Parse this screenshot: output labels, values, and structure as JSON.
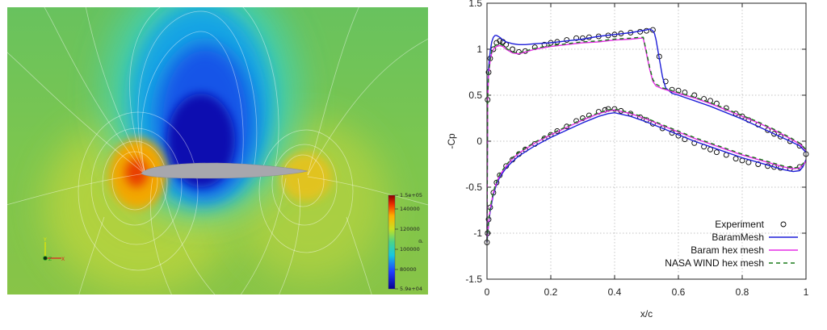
{
  "field_plot": {
    "colorbar": {
      "variable": "p",
      "max_label": "1.5e+05",
      "min_label": "5.9e+04",
      "ticks": [
        "140000",
        "120000",
        "100000",
        "80000"
      ]
    },
    "triad": {
      "y": "Y",
      "z": "Z",
      "x": "X"
    },
    "colors": {
      "background": "#6fc25a",
      "low": "#0a00a0",
      "high": "#a00000",
      "airfoil": "#a7a7ad"
    }
  },
  "chart_data": {
    "type": "line",
    "xlabel": "x/c",
    "ylabel": "-Cp",
    "xlim": [
      0,
      1
    ],
    "ylim": [
      -1.5,
      1.5
    ],
    "xticks": [
      "0",
      "0.2",
      "0.4",
      "0.6",
      "0.8",
      "1"
    ],
    "yticks": [
      "1.5",
      "1",
      "0.5",
      "0",
      "-0.5",
      "-1",
      "-1.5"
    ],
    "legend_position": "bottom-right",
    "series": [
      {
        "name": "Experiment",
        "style": "markers",
        "color": "#000000",
        "upper": {
          "x": [
            0.0,
            0.002,
            0.005,
            0.01,
            0.02,
            0.03,
            0.04,
            0.05,
            0.06,
            0.08,
            0.1,
            0.12,
            0.15,
            0.18,
            0.2,
            0.22,
            0.25,
            0.28,
            0.3,
            0.32,
            0.35,
            0.38,
            0.4,
            0.42,
            0.45,
            0.48,
            0.5,
            0.52,
            0.54,
            0.56,
            0.58,
            0.6,
            0.62,
            0.65,
            0.68,
            0.7,
            0.72,
            0.75,
            0.78,
            0.8,
            0.82,
            0.85,
            0.88,
            0.9,
            0.92,
            0.95,
            0.98,
            1.0
          ],
          "y": [
            -1.1,
            0.45,
            0.75,
            0.9,
            1.0,
            1.07,
            1.09,
            1.08,
            1.05,
            1.0,
            0.97,
            0.98,
            1.02,
            1.05,
            1.07,
            1.08,
            1.1,
            1.12,
            1.12,
            1.13,
            1.14,
            1.15,
            1.16,
            1.17,
            1.18,
            1.19,
            1.2,
            1.21,
            0.92,
            0.65,
            0.56,
            0.55,
            0.53,
            0.5,
            0.46,
            0.44,
            0.41,
            0.36,
            0.3,
            0.27,
            0.23,
            0.18,
            0.12,
            0.08,
            0.05,
            0.0,
            -0.05,
            -0.14
          ]
        },
        "lower": {
          "x": [
            0.002,
            0.005,
            0.01,
            0.02,
            0.03,
            0.04,
            0.06,
            0.08,
            0.1,
            0.12,
            0.15,
            0.18,
            0.2,
            0.22,
            0.25,
            0.28,
            0.3,
            0.32,
            0.35,
            0.37,
            0.38,
            0.4,
            0.42,
            0.45,
            0.48,
            0.5,
            0.52,
            0.55,
            0.58,
            0.6,
            0.62,
            0.65,
            0.68,
            0.7,
            0.72,
            0.75,
            0.78,
            0.8,
            0.82,
            0.85,
            0.88,
            0.9,
            0.92,
            0.95,
            0.98
          ],
          "y": [
            -1.0,
            -0.85,
            -0.72,
            -0.56,
            -0.45,
            -0.37,
            -0.27,
            -0.2,
            -0.14,
            -0.09,
            -0.03,
            0.03,
            0.07,
            0.11,
            0.16,
            0.22,
            0.25,
            0.28,
            0.32,
            0.34,
            0.35,
            0.35,
            0.33,
            0.3,
            0.26,
            0.23,
            0.19,
            0.14,
            0.09,
            0.06,
            0.02,
            -0.02,
            -0.06,
            -0.09,
            -0.12,
            -0.15,
            -0.19,
            -0.21,
            -0.23,
            -0.25,
            -0.27,
            -0.28,
            -0.29,
            -0.3,
            -0.28
          ]
        }
      },
      {
        "name": "BaramMesh",
        "style": "line",
        "color": "#1f1fd8",
        "upper": {
          "x": [
            0.0,
            0.002,
            0.005,
            0.01,
            0.015,
            0.02,
            0.025,
            0.03,
            0.04,
            0.05,
            0.06,
            0.08,
            0.1,
            0.12,
            0.15,
            0.2,
            0.25,
            0.3,
            0.35,
            0.4,
            0.45,
            0.5,
            0.51,
            0.52,
            0.525,
            0.53,
            0.54,
            0.55,
            0.56,
            0.58,
            0.6,
            0.65,
            0.7,
            0.75,
            0.8,
            0.85,
            0.9,
            0.95,
            0.98,
            1.0
          ],
          "y": [
            -1.1,
            0.5,
            0.8,
            0.98,
            1.08,
            1.13,
            1.15,
            1.15,
            1.13,
            1.1,
            1.08,
            1.06,
            1.05,
            1.05,
            1.06,
            1.07,
            1.09,
            1.11,
            1.14,
            1.16,
            1.18,
            1.21,
            1.22,
            1.2,
            1.17,
            1.1,
            0.9,
            0.7,
            0.58,
            0.52,
            0.5,
            0.44,
            0.38,
            0.31,
            0.24,
            0.16,
            0.08,
            0.0,
            -0.05,
            -0.12
          ]
        },
        "lower": {
          "x": [
            0.0,
            0.002,
            0.005,
            0.01,
            0.02,
            0.03,
            0.04,
            0.06,
            0.08,
            0.1,
            0.15,
            0.2,
            0.25,
            0.3,
            0.35,
            0.38,
            0.4,
            0.45,
            0.5,
            0.55,
            0.6,
            0.65,
            0.7,
            0.75,
            0.8,
            0.85,
            0.9,
            0.93,
            0.96,
            0.98,
            0.99,
            1.0
          ],
          "y": [
            -1.1,
            -1.02,
            -0.9,
            -0.76,
            -0.58,
            -0.47,
            -0.39,
            -0.29,
            -0.22,
            -0.16,
            -0.05,
            0.04,
            0.12,
            0.2,
            0.27,
            0.3,
            0.31,
            0.27,
            0.21,
            0.14,
            0.07,
            0.0,
            -0.06,
            -0.12,
            -0.18,
            -0.23,
            -0.28,
            -0.31,
            -0.33,
            -0.32,
            -0.28,
            -0.2
          ]
        }
      },
      {
        "name": "Baram hex mesh",
        "style": "line",
        "color": "#e62be6",
        "upper": {
          "x": [
            0.0,
            0.002,
            0.005,
            0.01,
            0.015,
            0.02,
            0.03,
            0.04,
            0.05,
            0.06,
            0.08,
            0.1,
            0.12,
            0.15,
            0.2,
            0.25,
            0.3,
            0.35,
            0.4,
            0.45,
            0.48,
            0.49,
            0.5,
            0.51,
            0.52,
            0.53,
            0.55,
            0.58,
            0.6,
            0.65,
            0.7,
            0.75,
            0.8,
            0.85,
            0.9,
            0.95,
            0.98,
            1.0
          ],
          "y": [
            -1.1,
            0.45,
            0.72,
            0.88,
            0.96,
            1.0,
            1.03,
            1.04,
            1.03,
            1.0,
            0.96,
            0.95,
            0.97,
            1.0,
            1.03,
            1.05,
            1.07,
            1.08,
            1.1,
            1.11,
            1.12,
            1.12,
            0.95,
            0.78,
            0.65,
            0.6,
            0.57,
            0.54,
            0.52,
            0.47,
            0.41,
            0.34,
            0.27,
            0.2,
            0.12,
            0.03,
            -0.03,
            -0.1
          ]
        },
        "lower": {
          "x": [
            0.0,
            0.002,
            0.005,
            0.01,
            0.02,
            0.03,
            0.04,
            0.06,
            0.08,
            0.1,
            0.15,
            0.2,
            0.25,
            0.3,
            0.35,
            0.38,
            0.4,
            0.45,
            0.5,
            0.55,
            0.6,
            0.65,
            0.7,
            0.75,
            0.8,
            0.85,
            0.9,
            0.93,
            0.96,
            0.98,
            1.0
          ],
          "y": [
            -1.08,
            -1.0,
            -0.88,
            -0.73,
            -0.56,
            -0.45,
            -0.37,
            -0.27,
            -0.19,
            -0.13,
            -0.02,
            0.07,
            0.15,
            0.23,
            0.3,
            0.33,
            0.34,
            0.3,
            0.24,
            0.17,
            0.1,
            0.03,
            -0.03,
            -0.09,
            -0.15,
            -0.2,
            -0.25,
            -0.28,
            -0.3,
            -0.29,
            -0.22
          ]
        }
      },
      {
        "name": "NASA WIND hex mesh",
        "style": "dashed",
        "color": "#1a7a1a",
        "upper": {
          "x": [
            0.0,
            0.002,
            0.005,
            0.01,
            0.015,
            0.02,
            0.03,
            0.04,
            0.05,
            0.06,
            0.08,
            0.1,
            0.12,
            0.15,
            0.2,
            0.25,
            0.3,
            0.35,
            0.4,
            0.45,
            0.48,
            0.49,
            0.5,
            0.51,
            0.52,
            0.53,
            0.55,
            0.58,
            0.6,
            0.65,
            0.7,
            0.75,
            0.8,
            0.85,
            0.9,
            0.95,
            0.98,
            1.0
          ],
          "y": [
            -1.1,
            0.46,
            0.74,
            0.9,
            0.98,
            1.02,
            1.05,
            1.06,
            1.04,
            1.01,
            0.97,
            0.96,
            0.98,
            1.01,
            1.04,
            1.06,
            1.08,
            1.09,
            1.11,
            1.12,
            1.13,
            1.13,
            0.97,
            0.8,
            0.67,
            0.62,
            0.58,
            0.55,
            0.53,
            0.48,
            0.42,
            0.35,
            0.28,
            0.21,
            0.13,
            0.04,
            -0.02,
            -0.09
          ]
        },
        "lower": {
          "x": [
            0.0,
            0.002,
            0.005,
            0.01,
            0.02,
            0.03,
            0.04,
            0.06,
            0.08,
            0.1,
            0.15,
            0.2,
            0.25,
            0.3,
            0.35,
            0.38,
            0.4,
            0.45,
            0.5,
            0.55,
            0.6,
            0.65,
            0.7,
            0.75,
            0.8,
            0.85,
            0.9,
            0.93,
            0.96,
            0.98,
            1.0
          ],
          "y": [
            -1.08,
            -1.0,
            -0.87,
            -0.72,
            -0.55,
            -0.44,
            -0.36,
            -0.26,
            -0.18,
            -0.12,
            -0.01,
            0.08,
            0.16,
            0.24,
            0.31,
            0.34,
            0.35,
            0.31,
            0.25,
            0.18,
            0.11,
            0.04,
            -0.02,
            -0.08,
            -0.14,
            -0.19,
            -0.24,
            -0.27,
            -0.29,
            -0.28,
            -0.21
          ]
        }
      }
    ]
  }
}
